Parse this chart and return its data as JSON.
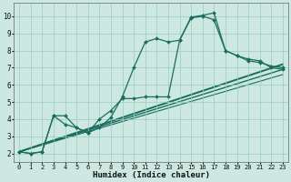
{
  "title": "",
  "xlabel": "Humidex (Indice chaleur)",
  "xlim": [
    -0.5,
    23.5
  ],
  "ylim": [
    1.5,
    10.8
  ],
  "xticks": [
    0,
    1,
    2,
    3,
    4,
    5,
    6,
    7,
    8,
    9,
    10,
    11,
    12,
    13,
    14,
    15,
    16,
    17,
    18,
    19,
    20,
    21,
    22,
    23
  ],
  "yticks": [
    2,
    3,
    4,
    5,
    6,
    7,
    8,
    9,
    10
  ],
  "background_color": "#cce8e0",
  "grid_color": "#99ccc0",
  "line_color": "#1a6e5e",
  "curve1": {
    "x": [
      0,
      1,
      2,
      3,
      4,
      5,
      6,
      7,
      8,
      9,
      10,
      11,
      12,
      13,
      14,
      15,
      16,
      17,
      18,
      19,
      20,
      21,
      22,
      23
    ],
    "y": [
      2.1,
      2.0,
      2.1,
      4.2,
      3.7,
      3.5,
      3.2,
      3.5,
      4.1,
      5.3,
      7.0,
      8.5,
      8.7,
      8.5,
      8.6,
      9.9,
      10.0,
      9.8,
      8.0,
      7.7,
      7.5,
      7.4,
      7.0,
      6.9
    ]
  },
  "curve2": {
    "x": [
      0,
      1,
      2,
      3,
      4,
      5,
      6,
      7,
      8,
      9,
      10,
      11,
      12,
      13,
      14,
      15,
      16,
      17,
      18,
      19,
      20,
      21,
      22,
      23
    ],
    "y": [
      2.1,
      2.0,
      2.1,
      4.2,
      4.2,
      3.5,
      3.2,
      4.0,
      4.5,
      5.2,
      5.2,
      5.3,
      5.3,
      5.3,
      8.6,
      9.95,
      10.05,
      10.2,
      8.0,
      7.7,
      7.4,
      7.3,
      7.1,
      7.0
    ]
  },
  "trend_lines": [
    {
      "x0": 0,
      "y0": 2.1,
      "x1": 23,
      "y1": 7.2,
      "lw": 1.4
    },
    {
      "x0": 0,
      "y0": 2.1,
      "x1": 23,
      "y1": 6.9,
      "lw": 1.0
    },
    {
      "x0": 0,
      "y0": 2.1,
      "x1": 23,
      "y1": 6.6,
      "lw": 0.8
    }
  ]
}
